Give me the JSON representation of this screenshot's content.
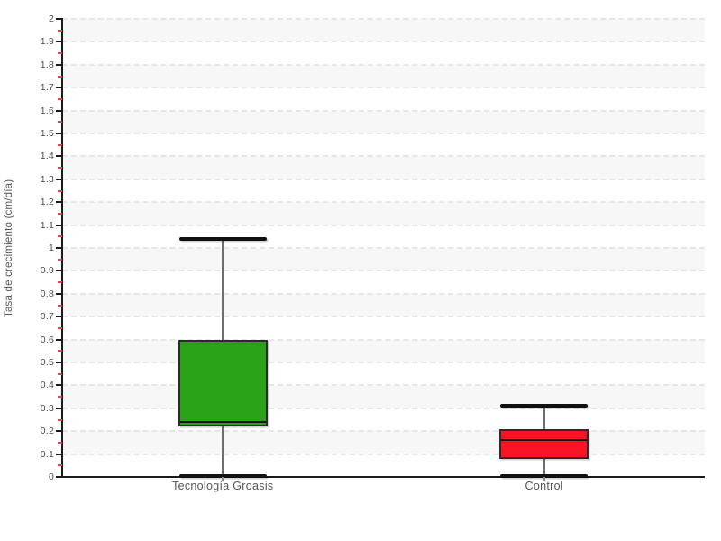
{
  "chart_data": {
    "type": "boxplot",
    "title": "",
    "xlabel": "",
    "ylabel": "Tasa de crecimiento (cm/día)",
    "ylim": [
      0,
      2
    ],
    "y_major_step": 0.1,
    "y_minor_step": 0.05,
    "y_tick_labels": [
      "0",
      "0.1",
      "0.2",
      "0.3",
      "0.4",
      "0.5",
      "0.6",
      "0.7",
      "0.8",
      "0.9",
      "1",
      "1.1",
      "1.2",
      "1.3",
      "1.4",
      "1.5",
      "1.6",
      "1.7",
      "1.8",
      "1.9",
      "2"
    ],
    "categories": [
      "Tecnología Groasis",
      "Control"
    ],
    "series": [
      {
        "name": "Tecnología Groasis",
        "box_color": "#2aa318",
        "whisker_low": 0.005,
        "q1": 0.22,
        "median": 0.24,
        "q3": 0.6,
        "whisker_high": 1.04
      },
      {
        "name": "Control",
        "box_color": "#fa1423",
        "whisker_low": 0.005,
        "q1": 0.08,
        "median": 0.16,
        "q3": 0.21,
        "whisker_high": 0.31
      }
    ],
    "grid": {
      "horizontal_dashed_lines_every": 0.1,
      "alternating_band_shading": true
    },
    "legend": "none"
  },
  "colors": {
    "background": "#ffffff",
    "band_gray": "#f7f7f7",
    "gridline": "#e6e6e6",
    "axis": "#1a1a1a",
    "minor_tick": "#e04343",
    "whisker": "#6e6e6e",
    "cap_and_median": "#111111",
    "box_border": "#2b2b2b",
    "tick_label": "#4a4a4a",
    "category_label": "#555555",
    "green_box": "#2aa318",
    "red_box": "#fa1423"
  }
}
